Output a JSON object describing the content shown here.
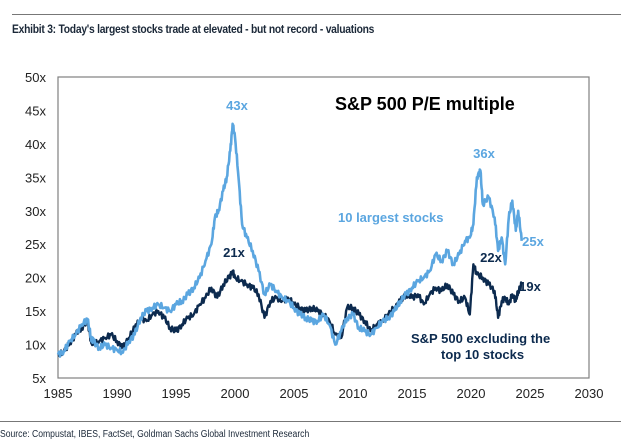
{
  "header": {
    "exhibit_title": "Exhibit 3: Today's largest stocks trade at elevated - but not record - valuations"
  },
  "footer": {
    "source": "Source: Compustat, IBES, FactSet, Goldman Sachs Global Investment Research"
  },
  "colors": {
    "largest": "#5ba6e0",
    "excluding": "#0c2a4e",
    "frame": "#808080"
  },
  "chart_data": {
    "type": "line",
    "title": "S&P 500 P/E multiple",
    "xlabel": "",
    "ylabel": "",
    "xlim": [
      1985,
      2030
    ],
    "ylim": [
      5,
      50
    ],
    "x_ticks": [
      "1985",
      "1990",
      "1995",
      "2000",
      "2005",
      "2010",
      "2015",
      "2020",
      "2025",
      "2030"
    ],
    "y_ticks": [
      "5x",
      "10x",
      "15x",
      "20x",
      "25x",
      "30x",
      "35x",
      "40x",
      "45x",
      "50x"
    ],
    "grid": false,
    "legend": "inline-labels",
    "series": [
      {
        "name": "10 largest stocks",
        "label_position": "center",
        "x": [
          1985.0,
          1985.5,
          1986.0,
          1986.5,
          1987.0,
          1987.5,
          1987.8,
          1988.0,
          1988.5,
          1989.0,
          1989.5,
          1990.0,
          1990.5,
          1991.0,
          1991.5,
          1992.0,
          1992.5,
          1993.0,
          1993.5,
          1994.0,
          1994.5,
          1995.0,
          1995.5,
          1996.0,
          1996.5,
          1997.0,
          1997.5,
          1998.0,
          1998.3,
          1998.6,
          1999.0,
          1999.3,
          1999.6,
          1999.8,
          2000.0,
          2000.3,
          2000.6,
          2001.0,
          2001.5,
          2002.0,
          2002.5,
          2003.0,
          2003.5,
          2004.0,
          2004.5,
          2005.0,
          2005.5,
          2006.0,
          2006.5,
          2007.0,
          2007.5,
          2008.0,
          2008.5,
          2009.0,
          2009.5,
          2010.0,
          2010.5,
          2011.0,
          2011.5,
          2012.0,
          2012.5,
          2013.0,
          2013.5,
          2014.0,
          2014.5,
          2015.0,
          2015.5,
          2016.0,
          2016.5,
          2017.0,
          2017.5,
          2018.0,
          2018.5,
          2019.0,
          2019.5,
          2019.9,
          2020.2,
          2020.5,
          2020.8,
          2021.0,
          2021.5,
          2022.0,
          2022.3,
          2022.6,
          2022.9,
          2023.2,
          2023.5,
          2023.8,
          2024.0,
          2024.3
        ],
        "values": [
          8.5,
          9.0,
          10.5,
          11.5,
          13.0,
          13.8,
          11.0,
          10.5,
          9.5,
          10.0,
          9.5,
          9.2,
          8.8,
          10.5,
          11.5,
          14.0,
          15.0,
          15.5,
          16.0,
          15.5,
          15.0,
          16.0,
          16.5,
          17.5,
          18.5,
          20.0,
          22.5,
          25.0,
          29.0,
          30.0,
          33.0,
          35.0,
          39.0,
          43.0,
          41.0,
          35.0,
          28.0,
          26.0,
          24.0,
          21.0,
          17.5,
          19.0,
          18.0,
          17.0,
          16.5,
          15.5,
          14.5,
          14.0,
          13.5,
          13.5,
          14.5,
          13.0,
          10.0,
          12.0,
          14.0,
          14.5,
          12.5,
          12.0,
          11.5,
          12.5,
          13.5,
          14.0,
          15.0,
          16.5,
          17.5,
          18.5,
          19.5,
          20.0,
          21.0,
          23.5,
          22.5,
          24.0,
          22.0,
          23.5,
          25.5,
          26.0,
          28.0,
          35.0,
          36.0,
          31.0,
          32.0,
          29.0,
          24.0,
          26.0,
          22.0,
          29.0,
          31.5,
          27.0,
          30.0,
          25.5
        ]
      },
      {
        "name": "S&P 500 excluding the top 10 stocks",
        "label_position": "bottom-right",
        "x": [
          1985.0,
          1985.5,
          1986.0,
          1986.5,
          1987.0,
          1987.5,
          1987.8,
          1988.0,
          1988.5,
          1989.0,
          1989.5,
          1990.0,
          1990.5,
          1991.0,
          1991.5,
          1992.0,
          1992.5,
          1993.0,
          1993.5,
          1994.0,
          1994.5,
          1995.0,
          1995.5,
          1996.0,
          1996.5,
          1997.0,
          1997.5,
          1998.0,
          1998.5,
          1999.0,
          1999.5,
          1999.8,
          2000.0,
          2000.5,
          2001.0,
          2001.5,
          2002.0,
          2002.5,
          2003.0,
          2003.5,
          2004.0,
          2004.5,
          2005.0,
          2005.5,
          2006.0,
          2006.5,
          2007.0,
          2007.5,
          2008.0,
          2008.5,
          2009.0,
          2009.5,
          2010.0,
          2010.5,
          2011.0,
          2011.5,
          2012.0,
          2012.5,
          2013.0,
          2013.5,
          2014.0,
          2014.5,
          2015.0,
          2015.5,
          2016.0,
          2016.5,
          2017.0,
          2017.5,
          2018.0,
          2018.5,
          2019.0,
          2019.5,
          2019.9,
          2020.2,
          2020.5,
          2021.0,
          2021.5,
          2022.0,
          2022.3,
          2022.6,
          2022.9,
          2023.2,
          2023.5,
          2023.8,
          2024.0,
          2024.3
        ],
        "values": [
          8.3,
          9.0,
          10.2,
          11.5,
          12.5,
          13.5,
          10.5,
          10.0,
          10.5,
          11.0,
          11.5,
          10.5,
          9.5,
          11.0,
          12.5,
          14.0,
          13.5,
          14.5,
          15.0,
          14.0,
          12.5,
          12.0,
          13.0,
          14.0,
          14.5,
          16.0,
          17.0,
          18.5,
          17.0,
          19.0,
          20.0,
          21.0,
          20.0,
          19.5,
          19.0,
          18.5,
          17.5,
          14.0,
          16.5,
          17.0,
          16.5,
          17.0,
          16.0,
          15.5,
          15.0,
          15.5,
          15.0,
          14.5,
          13.5,
          11.5,
          11.0,
          15.5,
          15.5,
          14.5,
          13.5,
          12.0,
          13.0,
          13.5,
          14.5,
          15.5,
          16.5,
          17.5,
          17.0,
          17.5,
          16.0,
          17.5,
          18.5,
          18.0,
          19.0,
          17.5,
          16.5,
          17.0,
          14.5,
          22.0,
          20.5,
          20.0,
          19.0,
          18.0,
          14.0,
          16.5,
          17.0,
          16.0,
          17.5,
          16.5,
          18.0,
          19.0
        ]
      }
    ],
    "annotations": [
      {
        "text": "43x",
        "series": "10 largest stocks",
        "x": 1999.8,
        "y": 43
      },
      {
        "text": "21x",
        "series": "S&P 500 excluding the top 10 stocks",
        "x": 1999.8,
        "y": 21
      },
      {
        "text": "36x",
        "series": "10 largest stocks",
        "x": 2020.8,
        "y": 36
      },
      {
        "text": "22x",
        "series": "S&P 500 excluding the top 10 stocks",
        "x": 2020.2,
        "y": 22
      },
      {
        "text": "25x",
        "series": "10 largest stocks",
        "x": 2024.3,
        "y": 25
      },
      {
        "text": "19x",
        "series": "S&P 500 excluding the top 10 stocks",
        "x": 2024.3,
        "y": 19
      }
    ],
    "series_labels": {
      "largest": "10 largest stocks",
      "excluding_line1": "S&P 500 excluding the",
      "excluding_line2": "top 10 stocks"
    }
  }
}
